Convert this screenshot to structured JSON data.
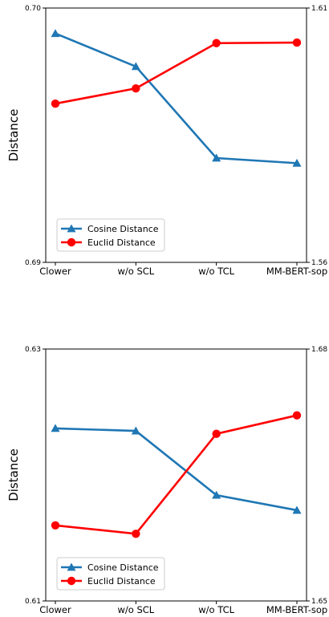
{
  "chart_data": [
    {
      "type": "line",
      "categories": [
        "Clower",
        "w/o SCL",
        "w/o TCL",
        "MM-BERT-sop"
      ],
      "ylabel": "Distance",
      "left_axis": {
        "ylim": [
          0.69,
          0.7
        ],
        "tick_labels": [
          "0.69",
          "0.70"
        ]
      },
      "right_axis": {
        "ylim": [
          1.56,
          1.61
        ],
        "tick_labels": [
          "1.56",
          "1.61"
        ]
      },
      "legend_placement": "lower-left",
      "grid": false,
      "series": [
        {
          "name": "Cosine Distance",
          "axis": "left",
          "marker": "triangle",
          "color": "#1f77b4",
          "values": [
            0.699,
            0.6977,
            0.6941,
            0.6939
          ]
        },
        {
          "name": "Euclid Distance",
          "axis": "right",
          "marker": "circle",
          "color": "#ff0000",
          "values": [
            1.5912,
            1.5942,
            1.6031,
            1.6032
          ]
        }
      ]
    },
    {
      "type": "line",
      "categories": [
        "Clower",
        "w/o SCL",
        "w/o TCL",
        "MM-BERT-sop"
      ],
      "ylabel": "Distance",
      "left_axis": {
        "ylim": [
          0.61,
          0.63
        ],
        "tick_labels": [
          "0.61",
          "0.63"
        ]
      },
      "right_axis": {
        "ylim": [
          1.65,
          1.68
        ],
        "tick_labels": [
          "1.65",
          "1.68"
        ]
      },
      "legend_placement": "lower-left",
      "grid": false,
      "series": [
        {
          "name": "Cosine Distance",
          "axis": "left",
          "marker": "triangle",
          "color": "#1f77b4",
          "values": [
            0.6237,
            0.6235,
            0.6184,
            0.6172
          ]
        },
        {
          "name": "Euclid Distance",
          "axis": "right",
          "marker": "circle",
          "color": "#ff0000",
          "values": [
            1.659,
            1.658,
            1.6699,
            1.6721
          ]
        }
      ]
    }
  ]
}
